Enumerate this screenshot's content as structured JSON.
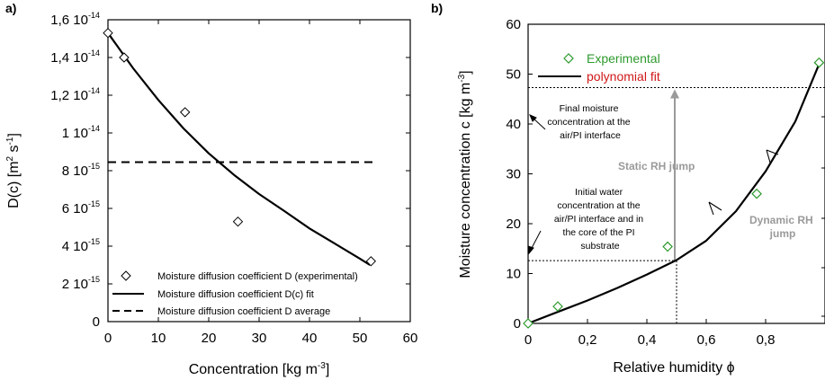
{
  "colors": {
    "green": "#2e9a2e",
    "red": "#d01818",
    "grey": "#9a9a9a",
    "black": "#000000"
  },
  "chart_data": [
    {
      "panel": "a)",
      "type": "scatter",
      "xlabel": "Concentration [kg m",
      "xlabel_sup": "-3",
      "xlabel_end": "]",
      "ylabel": "D(c) [m",
      "ylabel_sup1": "2",
      "ylabel_mid": " s",
      "ylabel_sup2": "-1",
      "ylabel_end": "]",
      "xlim": [
        0,
        60
      ],
      "ylim": [
        0,
        1.6e-14
      ],
      "x_ticks": [
        0,
        10,
        20,
        30,
        40,
        50,
        60
      ],
      "x_tick_labels": [
        "0",
        "10",
        "20",
        "30",
        "40",
        "50",
        "60"
      ],
      "y_ticks": [
        {
          "value": 0,
          "mant": "0",
          "exp": ""
        },
        {
          "value": 2e-15,
          "mant": "2 10",
          "exp": "-15"
        },
        {
          "value": 4e-15,
          "mant": "4 10",
          "exp": "-15"
        },
        {
          "value": 6e-15,
          "mant": "6 10",
          "exp": "-15"
        },
        {
          "value": 8e-15,
          "mant": "8 10",
          "exp": "-15"
        },
        {
          "value": 1e-14,
          "mant": "1 10",
          "exp": "-14"
        },
        {
          "value": 1.2e-14,
          "mant": "1,2 10",
          "exp": "-14"
        },
        {
          "value": 1.4e-14,
          "mant": "1,4 10",
          "exp": "-14"
        },
        {
          "value": 1.6e-14,
          "mant": "1,6 10",
          "exp": "-14"
        }
      ],
      "legend_position": "bottom-right",
      "series": [
        {
          "name": "Moisture diffusion coefficient D (experimental)",
          "kind": "scatter",
          "marker": "diamond-open",
          "x": [
            0,
            3.2,
            15.3,
            25.8,
            52.2
          ],
          "y": [
            1.53e-14,
            1.4e-14,
            1.11e-14,
            5.3e-15,
            3.2e-15
          ]
        },
        {
          "name": "Moisture diffusion coefficient D(c) fit",
          "kind": "line",
          "style": "solid",
          "x": [
            0,
            5,
            10,
            15,
            20,
            25,
            30,
            35,
            40,
            45,
            50,
            52
          ],
          "y": [
            1.53e-14,
            1.343e-14,
            1.175e-14,
            1.024e-14,
            8.92e-15,
            7.78e-15,
            6.76e-15,
            5.86e-15,
            4.94e-15,
            4.14e-15,
            3.34e-15,
            3e-15
          ]
        },
        {
          "name": "Moisture diffusion coefficient D average",
          "kind": "line",
          "style": "dashed",
          "x": [
            0,
            52.5
          ],
          "y": [
            8.45e-15,
            8.45e-15
          ]
        }
      ]
    },
    {
      "panel": "b)",
      "type": "line",
      "xlabel": "Relative humidity ",
      "xlabel_sym": "ϕ",
      "ylabel": "Moisture concentration c [kg m",
      "ylabel_sup": "-3",
      "ylabel_end": "]",
      "xlim": [
        0,
        1.0
      ],
      "ylim": [
        0,
        60
      ],
      "x_ticks": [
        0,
        0.2,
        0.4,
        0.6,
        0.8
      ],
      "x_tick_labels": [
        "0",
        "0,2",
        "0,4",
        "0,6",
        "0,8"
      ],
      "y_ticks": [
        0,
        10,
        20,
        30,
        40,
        50,
        60
      ],
      "y_tick_labels": [
        "0",
        "10",
        "20",
        "30",
        "40",
        "50",
        "60"
      ],
      "legend_position": "top-left",
      "series": [
        {
          "name": "Experimental",
          "kind": "scatter",
          "marker": "diamond-open",
          "x": [
            0,
            0.1,
            0.47,
            0.77,
            0.98
          ],
          "y": [
            0,
            3.4,
            15.4,
            26,
            52.3
          ]
        },
        {
          "name": "polynomial fit",
          "kind": "line",
          "style": "solid",
          "x": [
            0,
            0.1,
            0.2,
            0.3,
            0.4,
            0.5,
            0.6,
            0.7,
            0.8,
            0.9,
            0.98
          ],
          "y": [
            0,
            2.3,
            4.6,
            7.1,
            9.8,
            12.7,
            16.6,
            22.5,
            30.5,
            40.5,
            52
          ]
        }
      ],
      "reference_lines": {
        "initial_c": 12.6,
        "final_c": 47.3,
        "rh_jump": 0.5
      },
      "annotations": {
        "final": [
          "Final moisture",
          "concentration at the",
          "air/PI interface"
        ],
        "initial": [
          "Initial water",
          "concentration at the",
          "air/PI interface and in",
          "the core of the PI",
          "substrate"
        ],
        "static": "Static RH jump",
        "dynamic": [
          "Dynamic RH",
          "jump"
        ]
      }
    }
  ]
}
